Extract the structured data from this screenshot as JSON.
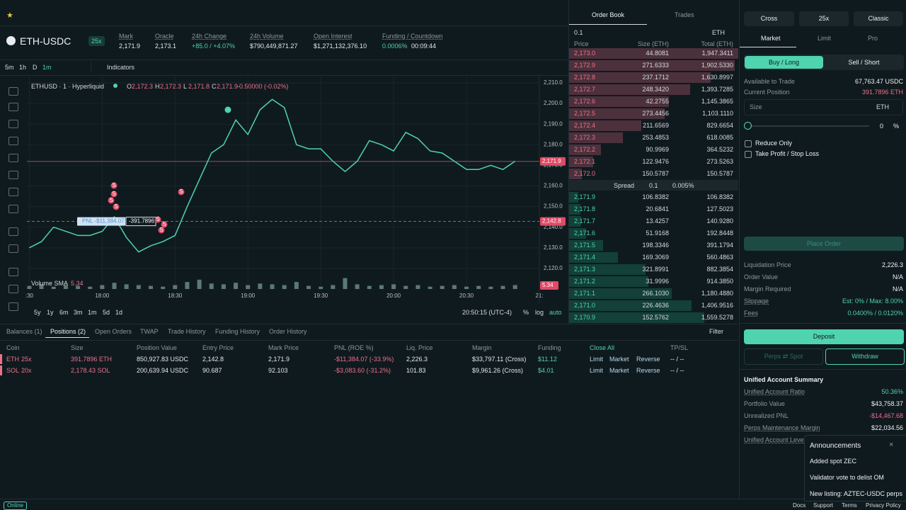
{
  "header": {
    "symbol": "ETH-USDC",
    "leverage": "25x",
    "stats": [
      {
        "label": "Mark",
        "value": "2,171.9"
      },
      {
        "label": "Oracle",
        "value": "2,173.1"
      },
      {
        "label": "24h Change",
        "value": "+85.0 / +4.07%"
      },
      {
        "label": "24h Volume",
        "value": "$790,449,871.27"
      },
      {
        "label": "Open Interest",
        "value": "$1,271,132,376.10"
      },
      {
        "label": "Funding / Countdown",
        "value": "0.0006%",
        "extra": "00:09:44"
      }
    ]
  },
  "toolbar": {
    "intervals": [
      "5m",
      "1h",
      "D"
    ],
    "interval": "1m",
    "indicators": "Indicators"
  },
  "chart_legend": {
    "source": "ETHUSD · 1 · Hyperliquid",
    "ohlc": [
      {
        "key": "O",
        "value": "2,172.3"
      },
      {
        "key": "H",
        "value": "2,172.3"
      },
      {
        "key": "L",
        "value": "2,171.8"
      },
      {
        "key": "C",
        "value": "2,171.9"
      }
    ],
    "change": "-0.50000 (-0.02%)",
    "volume_label": "Volume SMA",
    "volume_value": "5.34"
  },
  "chart_data": {
    "type": "line",
    "color": "#4fd3b0",
    "x": [
      "17:30",
      "17:35",
      "17:40",
      "17:45",
      "17:50",
      "17:55",
      "18:00",
      "18:05",
      "18:10",
      "18:15",
      "18:20",
      "18:25",
      "18:30",
      "18:35",
      "18:40",
      "18:45",
      "18:50",
      "18:55",
      "19:00",
      "19:05",
      "19:10",
      "19:15",
      "19:20",
      "19:25",
      "19:30",
      "19:35",
      "19:40",
      "19:45",
      "19:50",
      "19:55",
      "20:00",
      "20:05",
      "20:10",
      "20:15",
      "20:20",
      "20:25",
      "20:30",
      "20:35",
      "20:40",
      "20:45",
      "20:50"
    ],
    "series": [
      {
        "name": "Volume",
        "color": "#5b7a74",
        "values": [
          4,
          6,
          3,
          5,
          4,
          3,
          5,
          8,
          6,
          5,
          4,
          3,
          5,
          9,
          12,
          7,
          6,
          8,
          5,
          7,
          6,
          5,
          9,
          4,
          3,
          5,
          14,
          6,
          4,
          5,
          6,
          4,
          5,
          3,
          4,
          5,
          3,
          4,
          3,
          4,
          5
        ]
      }
    ],
    "values": [
      2130,
      2133,
      2140,
      2138,
      2136,
      2136,
      2138,
      2145,
      2135,
      2128,
      2131,
      2133,
      2136,
      2150,
      2163,
      2176,
      2180,
      2192,
      2185,
      2197,
      2202,
      2198,
      2180,
      2178,
      2178,
      2172,
      2167,
      2172,
      2182,
      2180,
      2177,
      2186,
      2183,
      2177,
      2176,
      2172,
      2168,
      2168,
      2170,
      2168,
      2172
    ],
    "xlim": [
      "17:29",
      "21:00"
    ],
    "xticks": [
      {
        "value": "17:30",
        "label": ":30"
      },
      "18:00",
      "18:30",
      "19:00",
      "19:30",
      "20:00",
      "20:30",
      {
        "value": "21:00",
        "label": "21:"
      }
    ],
    "ylim": [
      2116.2,
      2213.1
    ],
    "yticks": [
      {
        "value": 2120,
        "label": "2,120.0"
      },
      {
        "value": 2130,
        "label": "2,130.0"
      },
      {
        "value": 2140,
        "label": "2,140.0"
      },
      {
        "value": 2150,
        "label": "2,150.0"
      },
      {
        "value": 2160,
        "label": "2,160.0"
      },
      {
        "value": 2170,
        "label": "2,170.0"
      },
      {
        "value": 2180,
        "label": "2,180.0"
      },
      {
        "value": 2190,
        "label": "2,190.0"
      },
      {
        "value": 2200,
        "label": "2,200.0"
      },
      {
        "value": 2210,
        "label": "2,210.0"
      }
    ],
    "vlim": [
      0,
      20
    ],
    "grid": true,
    "current_price": {
      "value": 2171.9,
      "label": "2,171.9"
    },
    "entry_price": {
      "value": 2142.8,
      "label": "2,142.8"
    }
  },
  "chart_footer": {
    "ranges": [
      "5y",
      "1y",
      "6m",
      "3m",
      "1m",
      "5d",
      "1d"
    ],
    "clock": "20:50:15 (UTC-4)",
    "options": [
      "%",
      "log",
      "auto"
    ]
  },
  "position_label": {
    "pnl": "PNL -$11,384.07",
    "size": "-391.7896"
  },
  "marker_label": "S",
  "order_book": {
    "tabs": [
      "Order Book",
      "Trades"
    ],
    "tick": "0.1",
    "unit": "ETH",
    "columns": [
      "Price",
      "Size (ETH)",
      "Total (ETH)"
    ],
    "asks": [
      {
        "price": "2,173.0",
        "size": "44.8081",
        "total": {
          "value": 1947.3411,
          "label": "1,947.3411"
        }
      },
      {
        "price": "2,172.9",
        "size": "271.6333",
        "total": {
          "value": 1902.533,
          "label": "1,902.5330"
        }
      },
      {
        "price": "2,172.8",
        "size": "237.1712",
        "total": {
          "value": 1630.8997,
          "label": "1,630.8997"
        }
      },
      {
        "price": "2,172.7",
        "size": "248.3420",
        "total": {
          "value": 1393.7285,
          "label": "1,393.7285"
        }
      },
      {
        "price": "2,172.6",
        "size": "42.2755",
        "total": {
          "value": 1145.3865,
          "label": "1,145.3865"
        }
      },
      {
        "price": "2,172.5",
        "size": "273.4456",
        "total": {
          "value": 1103.111,
          "label": "1,103.1110"
        }
      },
      {
        "price": "2,172.4",
        "size": "211.6569",
        "total": {
          "value": 829.6654,
          "label": "829.6654"
        }
      },
      {
        "price": "2,172.3",
        "size": "253.4853",
        "total": {
          "value": 618.0085,
          "label": "618.0085"
        }
      },
      {
        "price": "2,172.2",
        "size": "90.9969",
        "total": {
          "value": 364.5232,
          "label": "364.5232"
        }
      },
      {
        "price": "2,172.1",
        "size": "122.9476",
        "total": {
          "value": 273.5263,
          "label": "273.5263"
        }
      },
      {
        "price": "2,172.0",
        "size": "150.5787",
        "total": {
          "value": 150.5787,
          "label": "150.5787"
        }
      }
    ],
    "spread": {
      "label": "Spread",
      "value": "0.1",
      "percent": "0.005%"
    },
    "bids": [
      {
        "price": "2,171.9",
        "size": "106.8382",
        "total": {
          "value": 106.8382,
          "label": "106.8382"
        }
      },
      {
        "price": "2,171.8",
        "size": "20.6841",
        "total": {
          "value": 127.5023,
          "label": "127.5023"
        }
      },
      {
        "price": "2,171.7",
        "size": "13.4257",
        "total": {
          "value": 140.928,
          "label": "140.9280"
        }
      },
      {
        "price": "2,171.6",
        "size": "51.9168",
        "total": {
          "value": 192.8448,
          "label": "192.8448"
        }
      },
      {
        "price": "2,171.5",
        "size": "198.3346",
        "total": {
          "value": 391.1794,
          "label": "391.1794"
        }
      },
      {
        "price": "2,171.4",
        "size": "169.3069",
        "total": {
          "value": 560.4863,
          "label": "560.4863"
        }
      },
      {
        "price": "2,171.3",
        "size": "321.8991",
        "total": {
          "value": 882.3854,
          "label": "882.3854"
        }
      },
      {
        "price": "2,171.2",
        "size": "31.9996",
        "total": {
          "value": 914.385,
          "label": "914.3850"
        }
      },
      {
        "price": "2,171.1",
        "size": "266.1030",
        "total": {
          "value": 1180.488,
          "label": "1,180.4880"
        }
      },
      {
        "price": "2,171.0",
        "size": "226.4636",
        "total": {
          "value": 1406.9516,
          "label": "1,406.9516"
        }
      },
      {
        "price": "2,170.9",
        "size": "152.5762",
        "total": {
          "value": 1559.5278,
          "label": "1,559.5278"
        }
      }
    ]
  },
  "bottom": {
    "tabs": [
      "Balances (1)",
      "Positions (2)",
      "Open Orders",
      "TWAP",
      "Trade History",
      "Funding History",
      "Order History"
    ],
    "filter": "Filter",
    "columns": [
      "Coin",
      "Size",
      "Position Value",
      "Entry Price",
      "Mark Price",
      "PNL (ROE %)",
      "Liq. Price",
      "Margin",
      "Funding",
      "Close All",
      "TP/SL"
    ],
    "actions": [
      "Limit",
      "Market",
      "Reverse"
    ],
    "rows": [
      {
        "coin": "ETH",
        "leverage": "25x",
        "size": "391.7896 ETH",
        "position_value": "850,927.83 USDC",
        "entry": "2,142.8",
        "mark": "2,171.9",
        "pnl": "-$11,384.07 (-33.9%)",
        "liq": "2,226.3",
        "margin": "$33,797.11 (Cross)",
        "funding": "$11.12",
        "tpsl": "-- / --"
      },
      {
        "coin": "SOL",
        "leverage": "20x",
        "size": "2,178.43 SOL",
        "position_value": "200,639.94 USDC",
        "entry": "90.687",
        "mark": "92.103",
        "pnl": "-$3,083.60 (-31.2%)",
        "liq": "101.83",
        "margin": "$9,961.26 (Cross)",
        "funding": "$4.01",
        "tpsl": "-- / --"
      }
    ]
  },
  "trade_panel": {
    "modes": [
      "Cross",
      "25x",
      "Classic"
    ],
    "order_types": [
      "Market",
      "Limit",
      "Pro"
    ],
    "sides": [
      "Buy / Long",
      "Sell / Short"
    ],
    "available_label": "Available to Trade",
    "available": "67,763.47 USDC",
    "position_label": "Current Position",
    "position": "391.7896 ETH",
    "size_label": "Size",
    "size_unit": "ETH",
    "slider_value": "0",
    "slider_unit": "%",
    "reduce_only": "Reduce Only",
    "tpsl": "Take Profit / Stop Loss",
    "place_order": "Place Order",
    "info": [
      {
        "label": "Liquidation Price",
        "value": "2,226.3"
      },
      {
        "label": "Order Value",
        "value": "N/A"
      },
      {
        "label": "Margin Required",
        "value": "N/A"
      },
      {
        "label": "Slippage",
        "value": "Est: 0% / Max: 8.00%"
      },
      {
        "label": "Fees",
        "value": "0.0400% / 0.0120%"
      }
    ],
    "deposit": "Deposit",
    "transfer": "Perps ⇄ Spot",
    "withdraw": "Withdraw",
    "summary_title": "Unified Account Summary",
    "summary": [
      {
        "label": "Unified Account Ratio",
        "value": "50.36%"
      },
      {
        "label": "Portfolio Value",
        "value": "$43,758.37"
      },
      {
        "label": "Unrealized PNL",
        "value": "-$14,467.68"
      },
      {
        "label": "Perps Maintenance Margin",
        "value": "$22,034.56"
      },
      {
        "label": "Unified Account Lever",
        "value": ""
      }
    ]
  },
  "announcements": {
    "title": "Announcements",
    "items": [
      "Added spot ZEC",
      "Validator vote to delist OM",
      "New listing: AZTEC-USDC perps"
    ]
  },
  "footer": {
    "status": "Online",
    "links": [
      "Docs",
      "Support",
      "Terms",
      "Privacy Policy"
    ]
  }
}
